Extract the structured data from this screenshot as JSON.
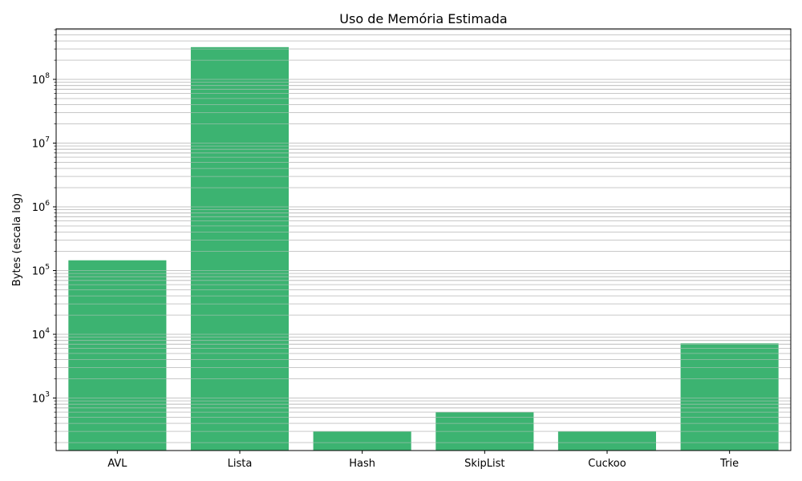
{
  "chart_data": {
    "type": "bar",
    "title": "Uso de Memória Estimada",
    "xlabel": "",
    "ylabel": "Bytes (escala log)",
    "yscale": "log",
    "ylim": [
      150,
      620000000
    ],
    "grid": "y (major and minor)",
    "bar_color": "#3cb371",
    "categories": [
      "AVL",
      "Lista",
      "Hash",
      "SkipList",
      "Cuckoo",
      "Trie"
    ],
    "values": [
      145000,
      320000000,
      300,
      600,
      300,
      7200
    ],
    "ytick_labels": [
      {
        "base": "10",
        "exp": "3",
        "value": 1000
      },
      {
        "base": "10",
        "exp": "4",
        "value": 10000
      },
      {
        "base": "10",
        "exp": "5",
        "value": 100000
      },
      {
        "base": "10",
        "exp": "6",
        "value": 1000000
      },
      {
        "base": "10",
        "exp": "7",
        "value": 10000000
      },
      {
        "base": "10",
        "exp": "8",
        "value": 100000000
      }
    ]
  }
}
